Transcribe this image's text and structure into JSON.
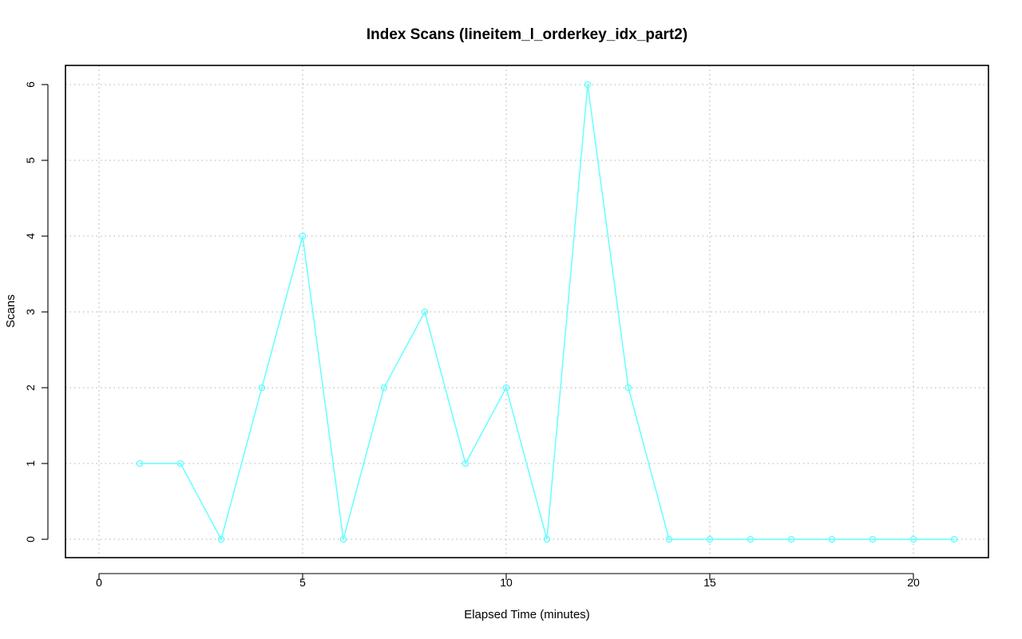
{
  "chart_data": {
    "type": "line",
    "title": "Index Scans (lineitem_l_orderkey_idx_part2)",
    "xlabel": "Elapsed Time (minutes)",
    "ylabel": "Scans",
    "xlim": [
      0,
      21
    ],
    "ylim": [
      0,
      6
    ],
    "x_ticks": [
      0,
      5,
      10,
      15,
      20
    ],
    "y_ticks": [
      0,
      1,
      2,
      3,
      4,
      5,
      6
    ],
    "grid": true,
    "series": [
      {
        "color": "#66ffff",
        "marker": "circle",
        "x": [
          1,
          2,
          3,
          4,
          5,
          6,
          7,
          8,
          9,
          10,
          11,
          12,
          13,
          14,
          15,
          16,
          17,
          18,
          19,
          20,
          21
        ],
        "values": [
          1,
          1,
          0,
          2,
          4,
          0,
          2,
          3,
          1,
          2,
          0,
          6,
          2,
          0,
          0,
          0,
          0,
          0,
          0,
          0,
          0
        ]
      }
    ]
  }
}
